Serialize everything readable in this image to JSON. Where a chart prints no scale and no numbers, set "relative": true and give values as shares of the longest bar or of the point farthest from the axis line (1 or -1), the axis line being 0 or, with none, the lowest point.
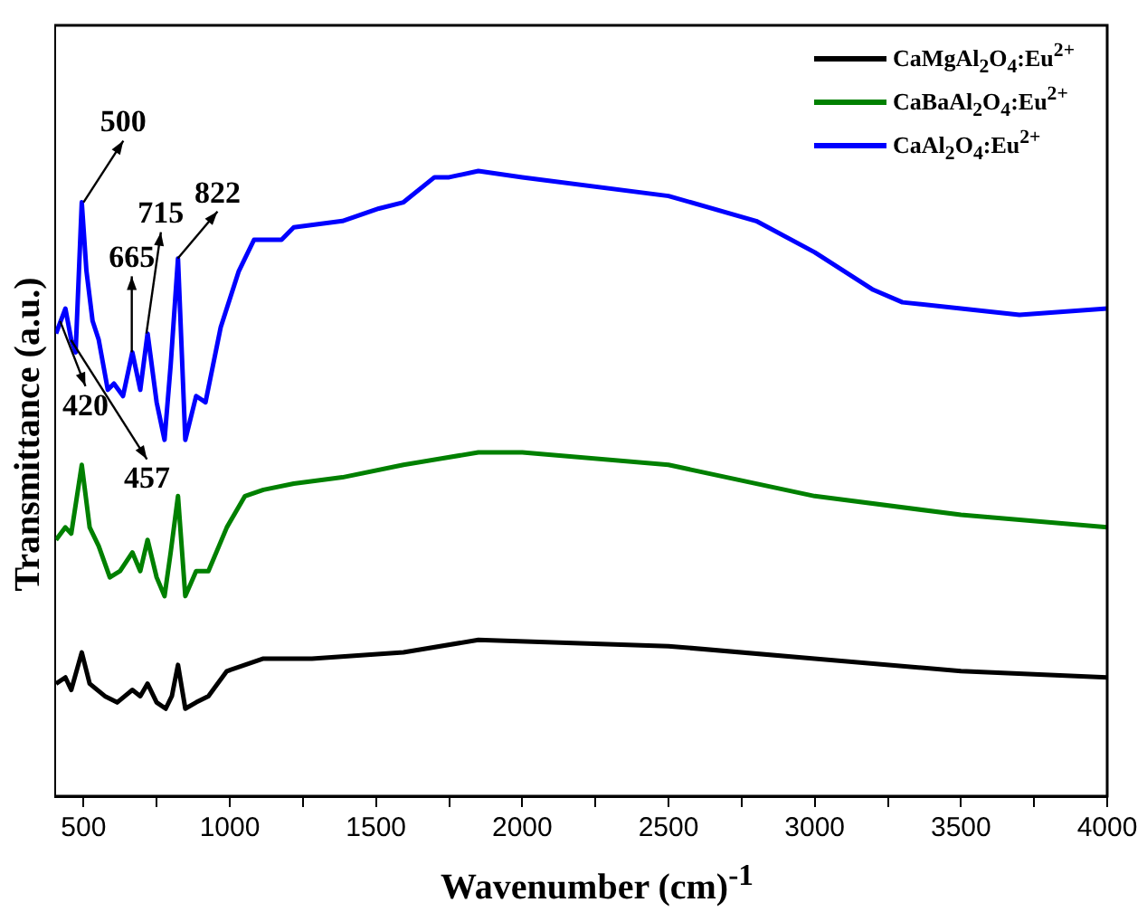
{
  "chart_data": {
    "type": "line",
    "relative": true,
    "xlabel": "Wavenumber (cm)$^{-1}$",
    "ylabel": "Transmittance (a.u.)",
    "xlim": [
      400,
      4000
    ],
    "xticks": [
      500,
      {
        "value": 750,
        "label": null
      },
      1000,
      {
        "value": 1250,
        "label": null
      },
      1500,
      {
        "value": 1750,
        "label": null
      },
      2000,
      {
        "value": 2250,
        "label": null
      },
      2500,
      {
        "value": 2750,
        "label": null
      },
      3000,
      {
        "value": 3250,
        "label": null
      },
      3500,
      {
        "value": 3750,
        "label": null
      },
      4000
    ],
    "grid": false,
    "legend": "top right",
    "marker": "none",
    "line_style": "solid",
    "series": [
      {
        "name": "CaMgAl$_{2}$O$_{4}$:Eu$^{2+}$",
        "color": "#000000",
        "x": [
          406,
          438,
          458,
          494,
          521,
          573,
          615,
          667,
          694,
          719,
          750,
          781,
          802,
          823,
          848,
          885,
          927,
          990,
          1052,
          1115,
          1281,
          1594,
          1850,
          2500,
          3000,
          3500,
          4000
        ],
        "values": [
          0.18,
          0.19,
          0.17,
          0.23,
          0.18,
          0.16,
          0.15,
          0.17,
          0.16,
          0.18,
          0.15,
          0.14,
          0.16,
          0.21,
          0.14,
          0.15,
          0.16,
          0.2,
          0.21,
          0.22,
          0.22,
          0.23,
          0.25,
          0.24,
          0.22,
          0.2,
          0.19
        ]
      },
      {
        "name": "CaBaAl$_{2}$O$_{4}$:Eu$^{2+}$",
        "color": "#008000",
        "x": [
          406,
          438,
          458,
          494,
          521,
          552,
          590,
          625,
          667,
          694,
          719,
          750,
          777,
          798,
          823,
          848,
          885,
          927,
          990,
          1052,
          1115,
          1219,
          1385,
          1594,
          1850,
          2000,
          2500,
          3000,
          3500,
          4000
        ],
        "values": [
          0.41,
          0.43,
          0.42,
          0.53,
          0.43,
          0.4,
          0.35,
          0.36,
          0.39,
          0.36,
          0.41,
          0.35,
          0.32,
          0.39,
          0.48,
          0.32,
          0.36,
          0.36,
          0.43,
          0.48,
          0.49,
          0.5,
          0.51,
          0.53,
          0.55,
          0.55,
          0.53,
          0.48,
          0.45,
          0.43
        ]
      },
      {
        "name": "CaAl$_{2}$O$_{4}$:Eu$^{2+}$",
        "color": "#0000ff",
        "x": [
          406,
          438,
          458,
          473,
          494,
          510,
          531,
          552,
          583,
          604,
          635,
          667,
          694,
          719,
          750,
          777,
          798,
          823,
          848,
          885,
          917,
          969,
          1031,
          1083,
          1177,
          1219,
          1385,
          1510,
          1594,
          1700,
          1750,
          1850,
          2000,
          2500,
          2800,
          3000,
          3200,
          3300,
          3500,
          3700,
          4000
        ],
        "values": [
          0.74,
          0.78,
          0.73,
          0.71,
          0.95,
          0.84,
          0.76,
          0.73,
          0.65,
          0.66,
          0.64,
          0.71,
          0.65,
          0.74,
          0.63,
          0.57,
          0.69,
          0.86,
          0.57,
          0.64,
          0.63,
          0.75,
          0.84,
          0.89,
          0.89,
          0.91,
          0.92,
          0.94,
          0.95,
          0.99,
          0.99,
          1,
          0.99,
          0.96,
          0.92,
          0.87,
          0.81,
          0.79,
          0.78,
          0.77,
          0.78
        ]
      }
    ],
    "annotations": [
      {
        "text": "500",
        "x": 500,
        "y": 0.95
      },
      {
        "text": "665",
        "x": 665,
        "y": 0.71
      },
      {
        "text": "715",
        "x": 715,
        "y": 0.74
      },
      {
        "text": "822",
        "x": 822,
        "y": 0.86
      },
      {
        "text": "420",
        "x": 420,
        "y": 0.76
      },
      {
        "text": "457",
        "x": 457,
        "y": 0.73
      }
    ]
  }
}
